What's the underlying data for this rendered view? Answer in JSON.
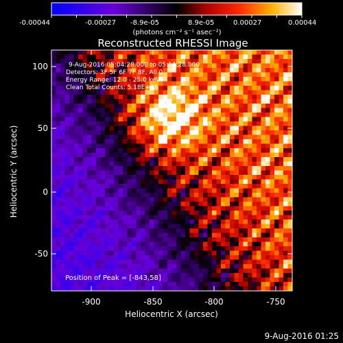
{
  "colorbar": {
    "ticks": [
      "-0.00044",
      "-0.00027",
      "-8.9e-05",
      "8.9e-05",
      "0.00027",
      "0.00044"
    ],
    "unit_label": "(photons cm⁻² s⁻¹ asec⁻²)"
  },
  "image": {
    "title": "Reconstructed RHESSI Image",
    "info_lines": [
      "9-Aug-2016 05:04:28.000 to 05:14:28.000",
      "Detectors: 3F 5F 6F 7F 8F, All 0",
      "Energy Range: 12.0 - 25.0 keV",
      "Clean      Total Counts: 5.18E+05"
    ],
    "peak_label": "Position of Peak = [-843,58]",
    "xlabel": "Heliocentric X (arcsec)",
    "ylabel": "Heliocentric Y (arcsec)",
    "x_ticks": [
      "-900",
      "-850",
      "-800",
      "-750"
    ],
    "y_ticks": [
      "100",
      "50",
      "0",
      "-50"
    ],
    "x_range": [
      -935,
      -735
    ],
    "y_range": [
      -82,
      112
    ]
  },
  "footer": {
    "timestamp": "9-Aug-2016 01:25"
  }
}
